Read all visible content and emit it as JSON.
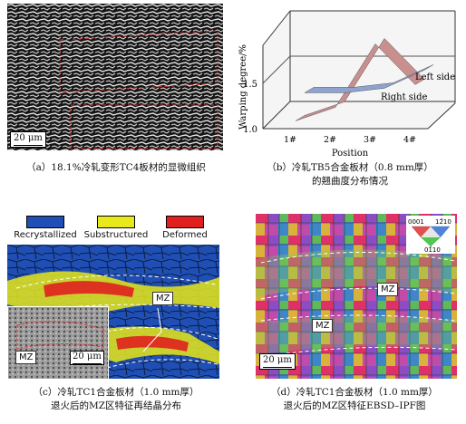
{
  "captions": {
    "a": "（a）18.1%冷轧变形TC4板材的显微组织",
    "b_line1": "（b）冷轧TB5合金板材（0.8 mm厚）",
    "b_line2": "的翘曲度分布情况",
    "c_line1": "（c）冷轧TC1合金板材（1.0 mm厚）",
    "c_line2": "退火后的MZ区特征再结晶分布",
    "d_line1": "（d）冷轧TC1合金板材（1.0 mm厚）",
    "d_line2": "退火后的MZ区特征EBSD–IPF图"
  },
  "panel_a": {
    "scalebar": "20 μm"
  },
  "panel_c": {
    "legend": [
      {
        "label": "Recrystallized",
        "color": "#1f4fb5"
      },
      {
        "label": "Substructured",
        "color": "#e8e81a"
      },
      {
        "label": "Deformed",
        "color": "#e0201f"
      }
    ],
    "tag_mz": "MZ",
    "inset_tag_mz": "MZ",
    "inset_scalebar": "20 μm"
  },
  "panel_d": {
    "tag_mz_1": "MZ",
    "tag_mz_2": "MZ",
    "scalebar": "20 μm",
    "ipf_key": {
      "top_left": "0001",
      "top_right": "12̄10",
      "bottom": "01̄10"
    }
  },
  "chart_data": {
    "type": "line",
    "title": "",
    "xlabel": "Position",
    "ylabel": "Warping degree/%",
    "categories": [
      "1#",
      "2#",
      "3#",
      "4#"
    ],
    "yticks": [
      "1.0",
      "1.5"
    ],
    "ylim": [
      1.0,
      2.0
    ],
    "series": [
      {
        "name": "Left side",
        "color": "#c98f8f",
        "values": [
          1.05,
          1.2,
          1.9,
          1.45
        ]
      },
      {
        "name": "Right side",
        "color": "#8fa3cf",
        "values": [
          1.3,
          1.3,
          1.35,
          1.55
        ]
      }
    ]
  }
}
